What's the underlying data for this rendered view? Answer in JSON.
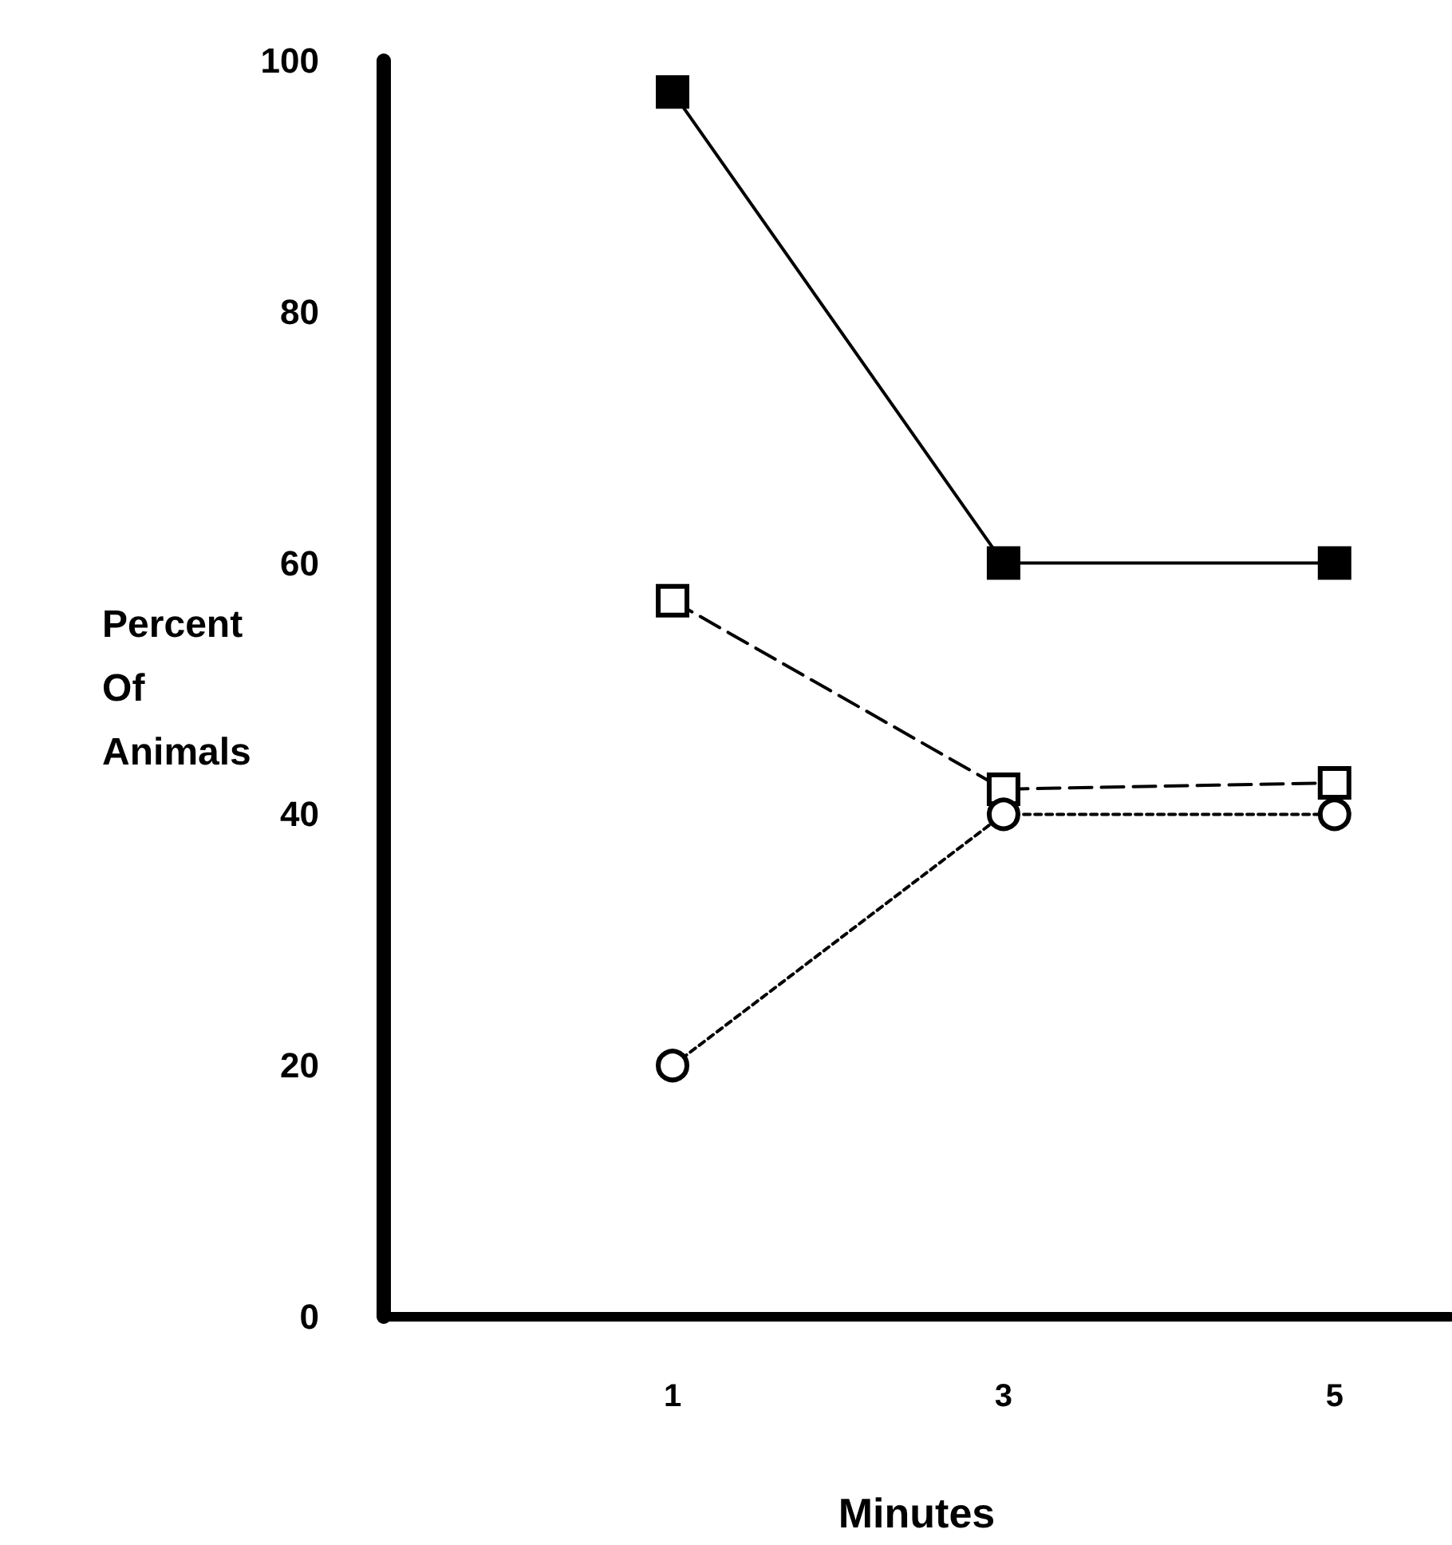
{
  "chart_data": {
    "type": "line",
    "xlabel": "Minutes",
    "ylabel": "Percent Of Animals",
    "x": [
      1,
      3,
      5
    ],
    "xlim": [
      -0.75,
      5.7
    ],
    "xticks": [
      1,
      3,
      5
    ],
    "ylim": [
      0,
      100
    ],
    "yticks": [
      0,
      20,
      40,
      60,
      80,
      100
    ],
    "grid": false,
    "series": [
      {
        "color": "#000000",
        "values": [
          97.5,
          60,
          60
        ],
        "marker": "square",
        "line_style": "solid"
      },
      {
        "color": "#000000",
        "values": [
          57,
          42,
          42.5
        ],
        "marker": "square",
        "line_style": "dashed"
      },
      {
        "color": "#000000",
        "values": [
          20,
          40,
          40
        ],
        "marker": "circle",
        "line_style": "dotted"
      }
    ]
  }
}
